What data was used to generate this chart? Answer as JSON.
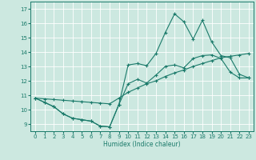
{
  "xlabel": "Humidex (Indice chaleur)",
  "xlim": [
    -0.5,
    23.5
  ],
  "ylim": [
    8.5,
    17.5
  ],
  "yticks": [
    9,
    10,
    11,
    12,
    13,
    14,
    15,
    16,
    17
  ],
  "xticks": [
    0,
    1,
    2,
    3,
    4,
    5,
    6,
    7,
    8,
    9,
    10,
    11,
    12,
    13,
    14,
    15,
    16,
    17,
    18,
    19,
    20,
    21,
    22,
    23
  ],
  "bg_color": "#cce8e0",
  "line_color": "#1a7a6a",
  "grid_color": "#ffffff",
  "line1_x": [
    0,
    1,
    2,
    3,
    4,
    5,
    6,
    7,
    8,
    9,
    10,
    11,
    12,
    13,
    14,
    15,
    16,
    17,
    18,
    19,
    20,
    21,
    22,
    23
  ],
  "line1_y": [
    10.8,
    10.5,
    10.2,
    9.7,
    9.4,
    9.3,
    9.2,
    8.85,
    8.8,
    10.35,
    11.8,
    12.1,
    11.85,
    12.4,
    13.0,
    13.1,
    12.9,
    13.55,
    13.75,
    13.8,
    13.55,
    12.6,
    12.2,
    12.2
  ],
  "line2_x": [
    0,
    1,
    2,
    3,
    4,
    5,
    6,
    7,
    8,
    9,
    10,
    11,
    12,
    13,
    14,
    15,
    16,
    17,
    18,
    19,
    20,
    21,
    22,
    23
  ],
  "line2_y": [
    10.8,
    10.75,
    10.7,
    10.65,
    10.6,
    10.55,
    10.5,
    10.45,
    10.4,
    10.8,
    11.2,
    11.5,
    11.8,
    12.0,
    12.3,
    12.55,
    12.75,
    13.0,
    13.2,
    13.4,
    13.6,
    13.7,
    13.8,
    13.9
  ],
  "line3_x": [
    0,
    1,
    2,
    3,
    4,
    5,
    6,
    7,
    8,
    9,
    10,
    11,
    12,
    13,
    14,
    15,
    16,
    17,
    18,
    19,
    20,
    21,
    22,
    23
  ],
  "line3_y": [
    10.8,
    10.5,
    10.2,
    9.7,
    9.4,
    9.3,
    9.2,
    8.85,
    8.8,
    10.35,
    13.1,
    13.2,
    13.05,
    13.9,
    15.35,
    16.65,
    16.1,
    14.9,
    16.2,
    14.7,
    13.75,
    13.6,
    12.45,
    12.2
  ],
  "figsize": [
    3.2,
    2.0
  ],
  "dpi": 100
}
